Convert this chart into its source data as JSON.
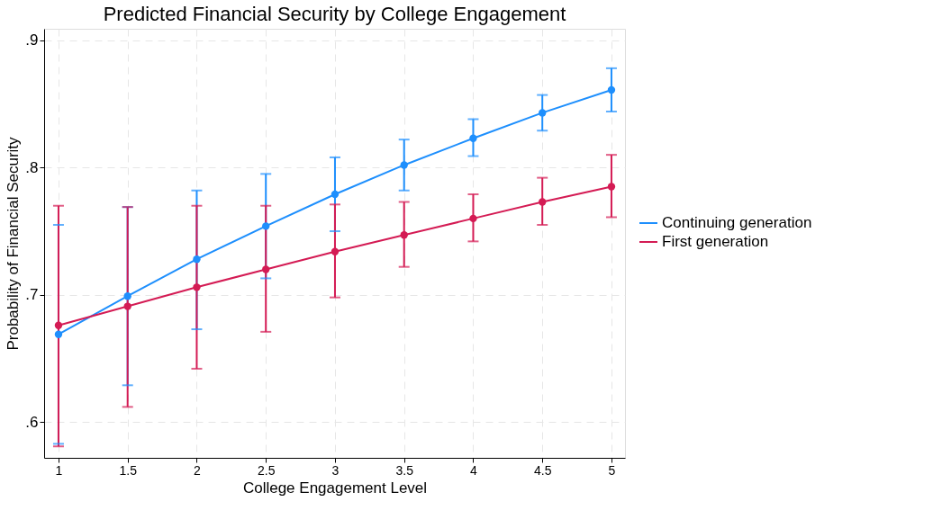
{
  "chart_data": {
    "type": "line",
    "title": "Predicted Financial Security by College Engagement",
    "xlabel": "College Engagement Level",
    "ylabel": "Probability of Financial Security",
    "x": [
      1,
      1.5,
      2,
      2.5,
      3,
      3.5,
      4,
      4.5,
      5
    ],
    "series": [
      {
        "name": "Continuing generation",
        "color": "#1e8ffd",
        "values": [
          0.669,
          0.699,
          0.728,
          0.754,
          0.779,
          0.802,
          0.823,
          0.843,
          0.861
        ],
        "errors": [
          [
            0.583,
            0.755
          ],
          [
            0.629,
            0.769
          ],
          [
            0.673,
            0.782
          ],
          [
            0.713,
            0.795
          ],
          [
            0.75,
            0.808
          ],
          [
            0.782,
            0.822
          ],
          [
            0.809,
            0.838
          ],
          [
            0.829,
            0.857
          ],
          [
            0.844,
            0.878
          ]
        ]
      },
      {
        "name": "First generation",
        "color": "#d41b54",
        "values": [
          0.676,
          0.691,
          0.706,
          0.72,
          0.734,
          0.747,
          0.76,
          0.773,
          0.785
        ],
        "errors": [
          [
            0.581,
            0.77
          ],
          [
            0.612,
            0.769
          ],
          [
            0.642,
            0.77
          ],
          [
            0.671,
            0.77
          ],
          [
            0.698,
            0.771
          ],
          [
            0.722,
            0.773
          ],
          [
            0.742,
            0.779
          ],
          [
            0.755,
            0.792
          ],
          [
            0.761,
            0.81
          ]
        ]
      }
    ],
    "xlim": [
      0.896,
      5.098
    ],
    "xticks": [
      1,
      1.5,
      2,
      2.5,
      3,
      3.5,
      4,
      4.5,
      5
    ],
    "ylim": [
      0.572,
      0.909
    ],
    "yticks": [
      {
        "value": 0.6,
        "label": ".6"
      },
      {
        "value": 0.7,
        "label": ".7"
      },
      {
        "value": 0.8,
        "label": ".8"
      },
      {
        "value": 0.9,
        "label": ".9"
      }
    ],
    "grid": true,
    "legend": "right",
    "marker": "circle",
    "line_style": "solid"
  }
}
